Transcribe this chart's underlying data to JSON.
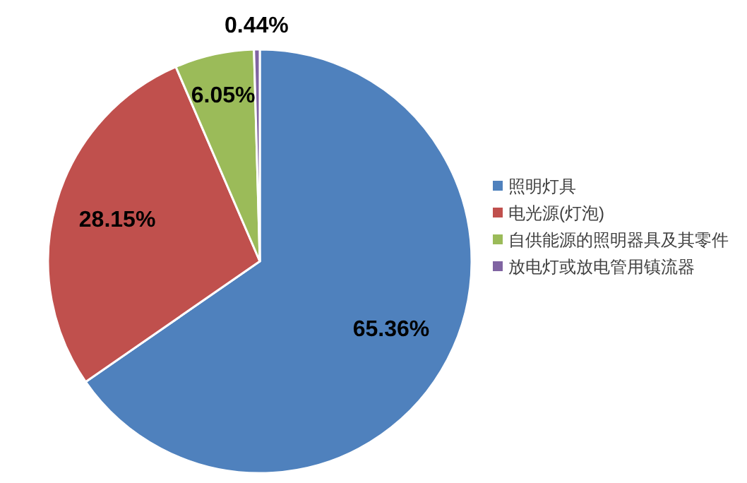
{
  "chart_data": {
    "type": "pie",
    "categories": [
      "照明灯具",
      "电光源(灯泡)",
      "自供能源的照明器具及其零件",
      "放电灯或放电管用镇流器"
    ],
    "values": [
      65.36,
      28.15,
      6.05,
      0.44
    ],
    "value_labels": [
      "65.36%",
      "28.15%",
      "6.05%",
      "0.44%"
    ],
    "colors": [
      "#4f81bd",
      "#c0504d",
      "#9bbb59",
      "#8064a2"
    ],
    "legend": "right"
  }
}
